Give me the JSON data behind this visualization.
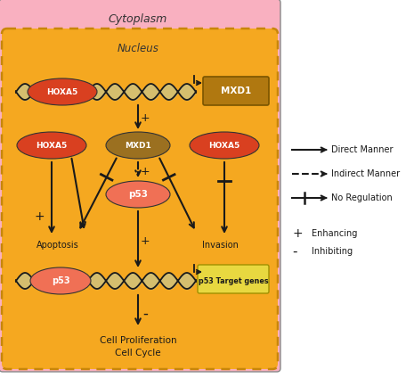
{
  "fig_width": 4.65,
  "fig_height": 4.24,
  "dpi": 100,
  "bg_color": "#ffffff",
  "cytoplasm_color": "#f9b0c0",
  "nucleus_color": "#f5a820",
  "nucleus_border_color": "#c8860a",
  "hoxa5_color": "#d94020",
  "hoxa5_text": "HOXA5",
  "mxd1_box_color": "#b07810",
  "mxd1_ellipse_color": "#9b7020",
  "mxd1_text": "MXD1",
  "p53_color": "#f07055",
  "p53_text": "p53",
  "dna_backbone_color": "#1a1a1a",
  "dna_fill_color": "#c8c890",
  "target_gene_box_color": "#e8d840",
  "arrow_color": "#1a1a1a",
  "text_color": "#1a1a1a",
  "legend_direct": "Direct Manner",
  "legend_indirect": "Indirect Manner",
  "legend_noreg": "No Regulation",
  "legend_enhancing": "Enhancing",
  "legend_inhibiting": "Inhibiting"
}
